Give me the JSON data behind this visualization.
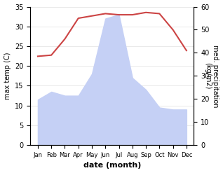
{
  "months": [
    "Jan",
    "Feb",
    "Mar",
    "Apr",
    "May",
    "Jun",
    "Jul",
    "Aug",
    "Sep",
    "Oct",
    "Nov",
    "Dec"
  ],
  "temperature_right": [
    38.5,
    39.0,
    46.0,
    55.0,
    56.0,
    57.0,
    56.5,
    56.5,
    57.5,
    57.0,
    50.0,
    41.0
  ],
  "precipitation_left": [
    11.5,
    13.5,
    12.5,
    12.5,
    18.0,
    32.0,
    33.0,
    17.0,
    14.0,
    9.5,
    9.0,
    9.0
  ],
  "temp_color": "#cc4444",
  "precip_fill_color": "#c5d0f5",
  "ylabel_left": "max temp (C)",
  "ylabel_right": "med. precipitation\n(kg/m2)",
  "xlabel": "date (month)",
  "ylim_left": [
    0,
    35
  ],
  "ylim_right": [
    0,
    60
  ],
  "yticks_left": [
    0,
    5,
    10,
    15,
    20,
    25,
    30,
    35
  ],
  "yticks_right": [
    0,
    10,
    20,
    30,
    40,
    50,
    60
  ],
  "background_color": "#ffffff"
}
